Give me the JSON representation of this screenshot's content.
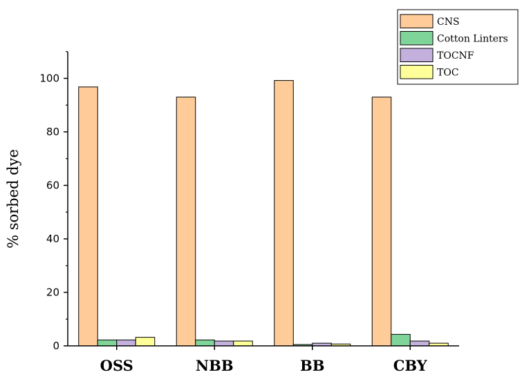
{
  "chart_data": {
    "type": "bar",
    "categories": [
      "OSS",
      "NBB",
      "BB",
      "CBY"
    ],
    "series": [
      {
        "name": "CNS",
        "color": "#FFCC99",
        "values": [
          96.8,
          93.0,
          99.2,
          93.0
        ]
      },
      {
        "name": "Cotton Linters",
        "color": "#7FD49A",
        "values": [
          2.2,
          2.2,
          0.5,
          4.3
        ]
      },
      {
        "name": "TOCNF",
        "color": "#C3B0DC",
        "values": [
          2.2,
          1.8,
          1.0,
          1.8
        ]
      },
      {
        "name": "TOC",
        "color": "#FFFF99",
        "values": [
          3.2,
          1.8,
          0.7,
          1.0
        ]
      }
    ],
    "title": "",
    "xlabel": "",
    "ylabel": "% sorbed dye",
    "ylim": [
      0,
      110
    ],
    "yticks": [
      0,
      20,
      40,
      60,
      80,
      100
    ],
    "grid": false,
    "legend": "top-right"
  }
}
